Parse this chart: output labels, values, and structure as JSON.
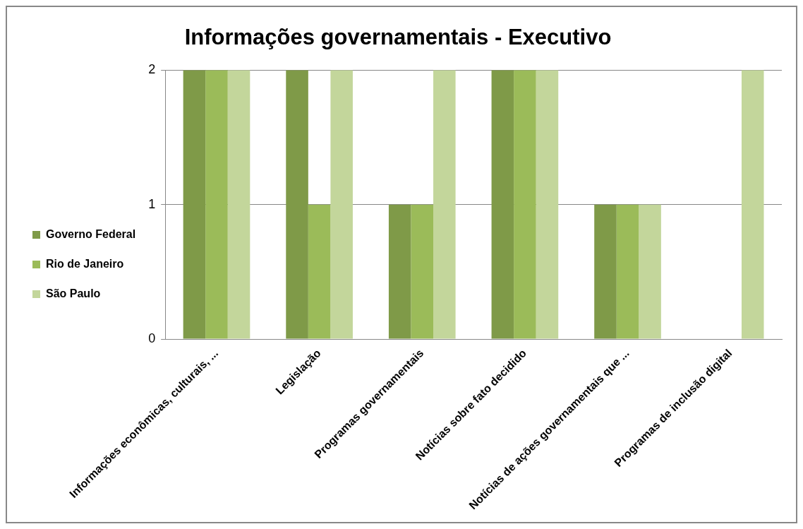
{
  "chart_data": {
    "type": "bar",
    "title": "Informações governamentais - Executivo",
    "categories": [
      "Informações econômicas, culturais, ...",
      "Legislação",
      "Programas governamentais",
      "Notícias sobre fato decidido",
      "Notícias de ações governamentais que ...",
      "Programas de inclusão digital"
    ],
    "series": [
      {
        "name": "Governo Federal",
        "color": "#7f9a48",
        "values": [
          2,
          2,
          1,
          2,
          1,
          0
        ]
      },
      {
        "name": "Rio de Janeiro",
        "color": "#9bbb59",
        "values": [
          2,
          1,
          1,
          2,
          1,
          0
        ]
      },
      {
        "name": "São Paulo",
        "color": "#c3d69b",
        "values": [
          2,
          2,
          2,
          2,
          1,
          2
        ]
      }
    ],
    "ylim": [
      0,
      2
    ],
    "yticks": [
      0,
      1,
      2
    ],
    "grid": "y",
    "legend": "left"
  }
}
